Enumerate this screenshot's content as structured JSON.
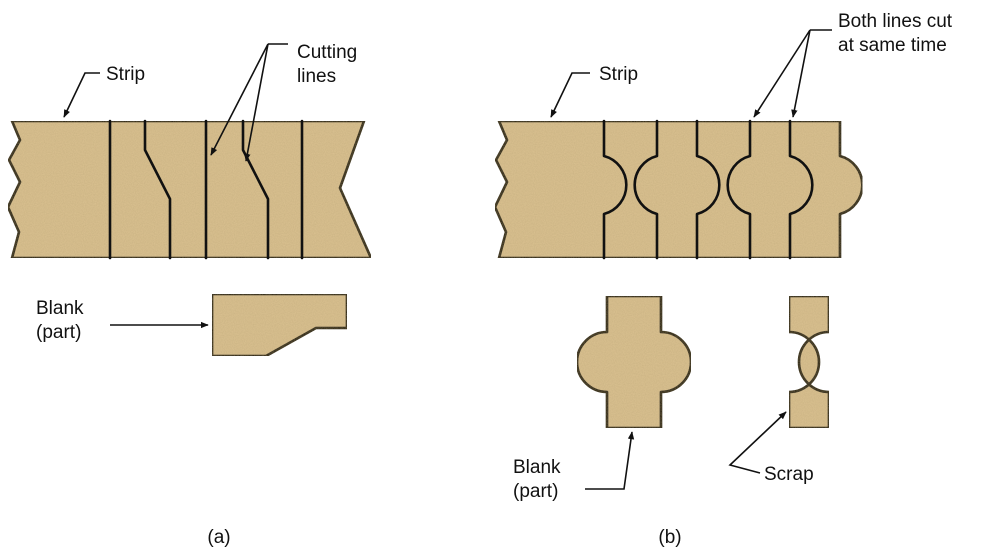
{
  "colors": {
    "material": "#dcc292",
    "ink": "#111111",
    "background": "#ffffff"
  },
  "labels": {
    "a": {
      "strip": "Strip",
      "cutting_line1": "Cutting",
      "cutting_line2": "lines",
      "blank_line1": "Blank",
      "blank_line2": "(part)",
      "caption": "(a)"
    },
    "b": {
      "strip": "Strip",
      "both_line1": "Both lines cut",
      "both_line2": "at same time",
      "blank_line1": "Blank",
      "blank_line2": "(part)",
      "scrap": "Scrap",
      "caption": "(b)"
    }
  }
}
